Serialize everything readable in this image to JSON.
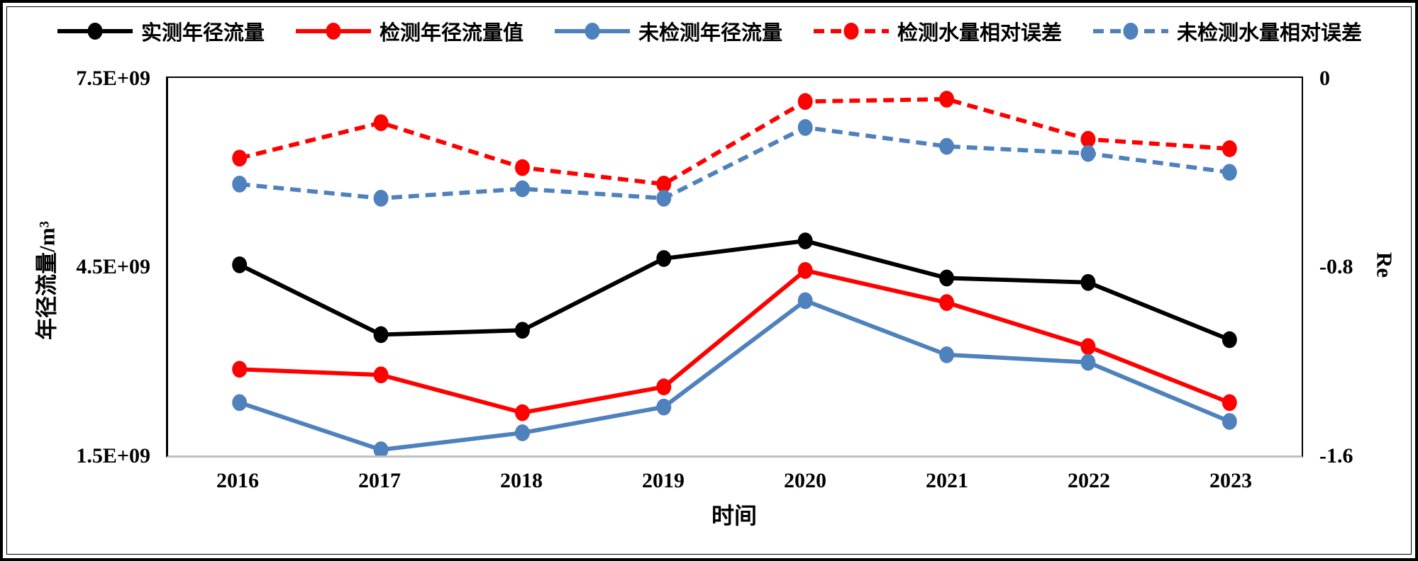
{
  "chart_data": {
    "type": "line",
    "title": "",
    "x": [
      "2016",
      "2017",
      "2018",
      "2019",
      "2020",
      "2021",
      "2022",
      "2023"
    ],
    "x_axis": {
      "title": "时间"
    },
    "left_axis": {
      "title": "年径流量/m³",
      "unit": "m³ (values ×10⁹)",
      "ticks": [
        "7.5E+09",
        "4.5E+09",
        "1.5E+09"
      ],
      "range_e9": [
        1.5,
        7.5
      ]
    },
    "right_axis": {
      "title": "Re",
      "ticks": [
        "0",
        "-0.8",
        "-1.6"
      ],
      "range": [
        -1.6,
        0
      ]
    },
    "grid": false,
    "legend_position": "top",
    "series": [
      {
        "name": "实测年径流量",
        "axis": "left",
        "color": "#000000",
        "dash": false,
        "values": [
          4.53,
          3.42,
          3.49,
          4.63,
          4.91,
          4.32,
          4.25,
          3.34
        ]
      },
      {
        "name": "检测年径流量值",
        "axis": "left",
        "color": "#FF0000",
        "dash": false,
        "values": [
          2.87,
          2.78,
          2.18,
          2.59,
          4.44,
          3.93,
          3.23,
          2.34
        ]
      },
      {
        "name": "未检测年径流量",
        "axis": "left",
        "color": "#4F81BD",
        "dash": false,
        "values": [
          2.34,
          1.59,
          1.86,
          2.27,
          3.96,
          3.1,
          2.98,
          2.04
        ]
      },
      {
        "name": "检测水量相对误差",
        "axis": "right",
        "color": "#FF0000",
        "dash": true,
        "values": [
          -0.34,
          -0.19,
          -0.38,
          -0.45,
          -0.1,
          -0.09,
          -0.26,
          -0.3
        ]
      },
      {
        "name": "未检测水量相对误差",
        "axis": "right",
        "color": "#4F81BD",
        "dash": true,
        "values": [
          -0.45,
          -0.51,
          -0.47,
          -0.51,
          -0.21,
          -0.29,
          -0.32,
          -0.4
        ]
      }
    ]
  }
}
